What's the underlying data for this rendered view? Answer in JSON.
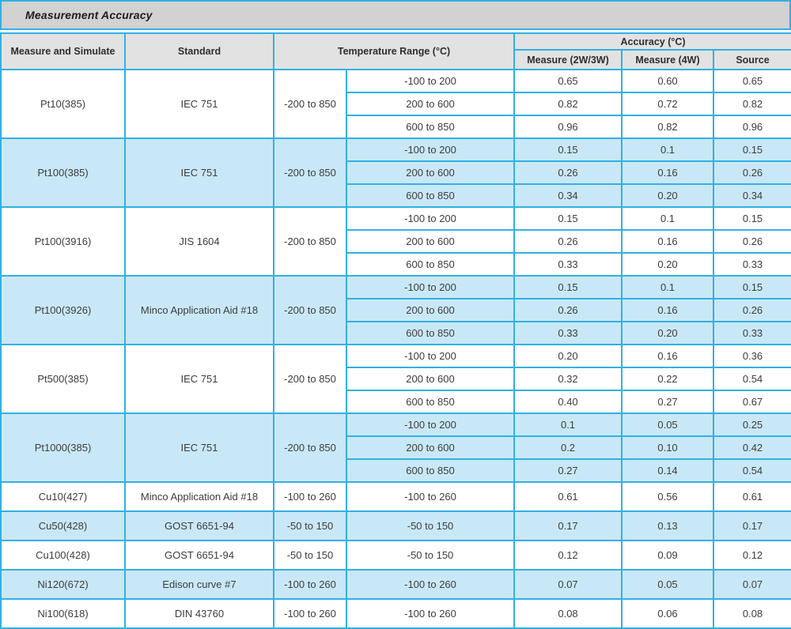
{
  "title": "Measurement Accuracy",
  "colors": {
    "border": "#32b0e3",
    "row_blue": "#c9e8f7",
    "row_white": "#ffffff",
    "title_bg": "#d2d2d2",
    "header_bg": "#e2e2e2"
  },
  "header": {
    "measure_simulate": "Measure and Simulate",
    "standard": "Standard",
    "temp_range": "Temperature Range (°C)",
    "accuracy": "Accuracy  (°C)",
    "measure_2w3w": "Measure (2W/3W)",
    "measure_4w": "Measure (4W)",
    "source": "Source"
  },
  "groups": [
    {
      "name": "Pt10(385)",
      "standard": "IEC 751",
      "range": "-200 to 850",
      "shade": "white",
      "rows": [
        {
          "sub_range": "-100 to 200",
          "measure_2w3w": "0.65",
          "measure_4w": "0.60",
          "source": "0.65"
        },
        {
          "sub_range": "200 to 600",
          "measure_2w3w": "0.82",
          "measure_4w": "0.72",
          "source": "0.82"
        },
        {
          "sub_range": "600 to 850",
          "measure_2w3w": "0.96",
          "measure_4w": "0.82",
          "source": "0.96"
        }
      ]
    },
    {
      "name": "Pt100(385)",
      "standard": "IEC 751",
      "range": "-200 to 850",
      "shade": "blue",
      "rows": [
        {
          "sub_range": "-100 to 200",
          "measure_2w3w": "0.15",
          "measure_4w": "0.1",
          "source": "0.15"
        },
        {
          "sub_range": "200 to 600",
          "measure_2w3w": "0.26",
          "measure_4w": "0.16",
          "source": "0.26"
        },
        {
          "sub_range": "600 to 850",
          "measure_2w3w": "0.34",
          "measure_4w": "0.20",
          "source": "0.34"
        }
      ]
    },
    {
      "name": "Pt100(3916)",
      "standard": "JIS 1604",
      "range": "-200 to 850",
      "shade": "white",
      "rows": [
        {
          "sub_range": "-100 to 200",
          "measure_2w3w": "0.15",
          "measure_4w": "0.1",
          "source": "0.15"
        },
        {
          "sub_range": "200 to 600",
          "measure_2w3w": "0.26",
          "measure_4w": "0.16",
          "source": "0.26"
        },
        {
          "sub_range": "600 to 850",
          "measure_2w3w": "0.33",
          "measure_4w": "0.20",
          "source": "0.33"
        }
      ]
    },
    {
      "name": "Pt100(3926)",
      "standard": "Minco Application Aid #18",
      "range": "-200 to 850",
      "shade": "blue",
      "rows": [
        {
          "sub_range": "-100 to 200",
          "measure_2w3w": "0.15",
          "measure_4w": "0.1",
          "source": "0.15"
        },
        {
          "sub_range": "200 to 600",
          "measure_2w3w": "0.26",
          "measure_4w": "0.16",
          "source": "0.26"
        },
        {
          "sub_range": "600 to 850",
          "measure_2w3w": "0.33",
          "measure_4w": "0.20",
          "source": "0.33"
        }
      ]
    },
    {
      "name": "Pt500(385)",
      "standard": "IEC 751",
      "range": "-200 to 850",
      "shade": "white",
      "rows": [
        {
          "sub_range": "-100 to 200",
          "measure_2w3w": "0.20",
          "measure_4w": "0.16",
          "source": "0.36"
        },
        {
          "sub_range": "200 to 600",
          "measure_2w3w": "0.32",
          "measure_4w": "0.22",
          "source": "0.54"
        },
        {
          "sub_range": "600 to 850",
          "measure_2w3w": "0.40",
          "measure_4w": "0.27",
          "source": "0.67"
        }
      ]
    },
    {
      "name": "Pt1000(385)",
      "standard": "IEC 751",
      "range": "-200 to 850",
      "shade": "blue",
      "rows": [
        {
          "sub_range": "-100 to 200",
          "measure_2w3w": "0.1",
          "measure_4w": "0.05",
          "source": "0.25"
        },
        {
          "sub_range": "200 to 600",
          "measure_2w3w": "0.2",
          "measure_4w": "0.10",
          "source": "0.42"
        },
        {
          "sub_range": "600 to 850",
          "measure_2w3w": "0.27",
          "measure_4w": "0.14",
          "source": "0.54"
        }
      ]
    },
    {
      "name": "Cu10(427)",
      "standard": "Minco Application Aid #18",
      "range": "-100 to 260",
      "shade": "white",
      "rows": [
        {
          "sub_range": "-100 to 260",
          "measure_2w3w": "0.61",
          "measure_4w": "0.56",
          "source": "0.61"
        }
      ]
    },
    {
      "name": "Cu50(428)",
      "standard": "GOST 6651-94",
      "range": "-50 to 150",
      "shade": "blue",
      "rows": [
        {
          "sub_range": "-50 to 150",
          "measure_2w3w": "0.17",
          "measure_4w": "0.13",
          "source": "0.17"
        }
      ]
    },
    {
      "name": "Cu100(428)",
      "standard": "GOST 6651-94",
      "range": "-50 to 150",
      "shade": "white",
      "rows": [
        {
          "sub_range": "-50 to 150",
          "measure_2w3w": "0.12",
          "measure_4w": "0.09",
          "source": "0.12"
        }
      ]
    },
    {
      "name": "Ni120(672)",
      "standard": "Edison curve #7",
      "range": "-100 to 260",
      "shade": "blue",
      "rows": [
        {
          "sub_range": "-100 to 260",
          "measure_2w3w": "0.07",
          "measure_4w": "0.05",
          "source": "0.07"
        }
      ]
    },
    {
      "name": "Ni100(618)",
      "standard": "DIN 43760",
      "range": "-100 to 260",
      "shade": "white",
      "rows": [
        {
          "sub_range": "-100 to 260",
          "measure_2w3w": "0.08",
          "measure_4w": "0.06",
          "source": "0.08"
        }
      ]
    }
  ]
}
